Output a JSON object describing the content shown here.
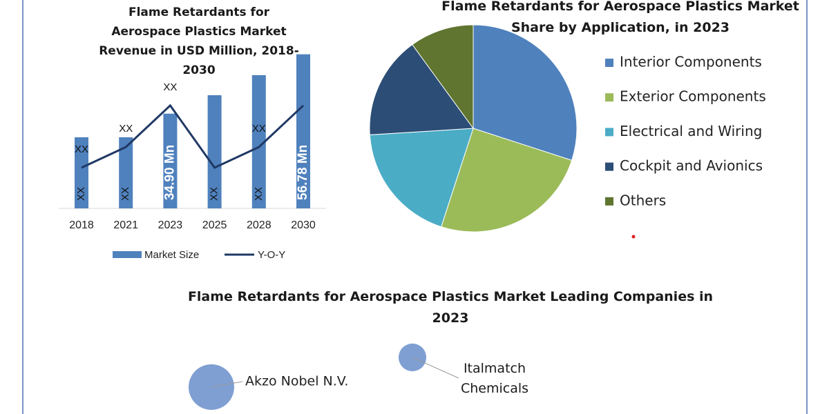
{
  "chart_data": [
    {
      "type": "bar",
      "title": "Flame Retardants for Aerospace Plastics Market Revenue in USD Million, 2018-2030",
      "categories": [
        "2018",
        "2021",
        "2023",
        "2025",
        "2028",
        "2030"
      ],
      "ylim": [
        0,
        60
      ],
      "series": [
        {
          "name": "Market Size",
          "type": "bar",
          "color": "#4f81bd",
          "values": [
            26.2,
            26.2,
            34.9,
            41.7,
            49.1,
            56.78
          ],
          "value_labels": [
            "XX",
            "XX",
            "34.90 Mn",
            "XX",
            "XX",
            "56.78 Mn"
          ]
        },
        {
          "name": "Y-O-Y",
          "type": "line",
          "color": "#1f3864",
          "values": [
            15,
            22.6,
            37.9,
            15,
            22.6,
            37.9
          ],
          "value_labels": [
            "XX",
            "XX",
            "XX",
            null,
            "XX",
            null
          ]
        }
      ]
    },
    {
      "type": "pie",
      "title": "Flame Retardants for Aerospace Plastics Market Share by Application, in 2023",
      "categories": [
        "Interior Components",
        "Exterior Components",
        "Electrical and Wiring",
        "Cockpit and Avionics",
        "Others"
      ],
      "values": [
        30,
        25,
        19,
        16,
        10
      ],
      "colors": [
        "#4f81bd",
        "#9bbb59",
        "#4bacc6",
        "#2c4d75",
        "#5f7530"
      ],
      "legend": "right"
    },
    {
      "type": "bubble",
      "title": "Flame Retardants for Aerospace Plastics Market Leading Companies in 2023",
      "categories": [
        "Akzo Nobel N.V.",
        "Italmatch Chemicals"
      ],
      "values": [
        100,
        37
      ],
      "color": "#7f9fd2"
    }
  ]
}
